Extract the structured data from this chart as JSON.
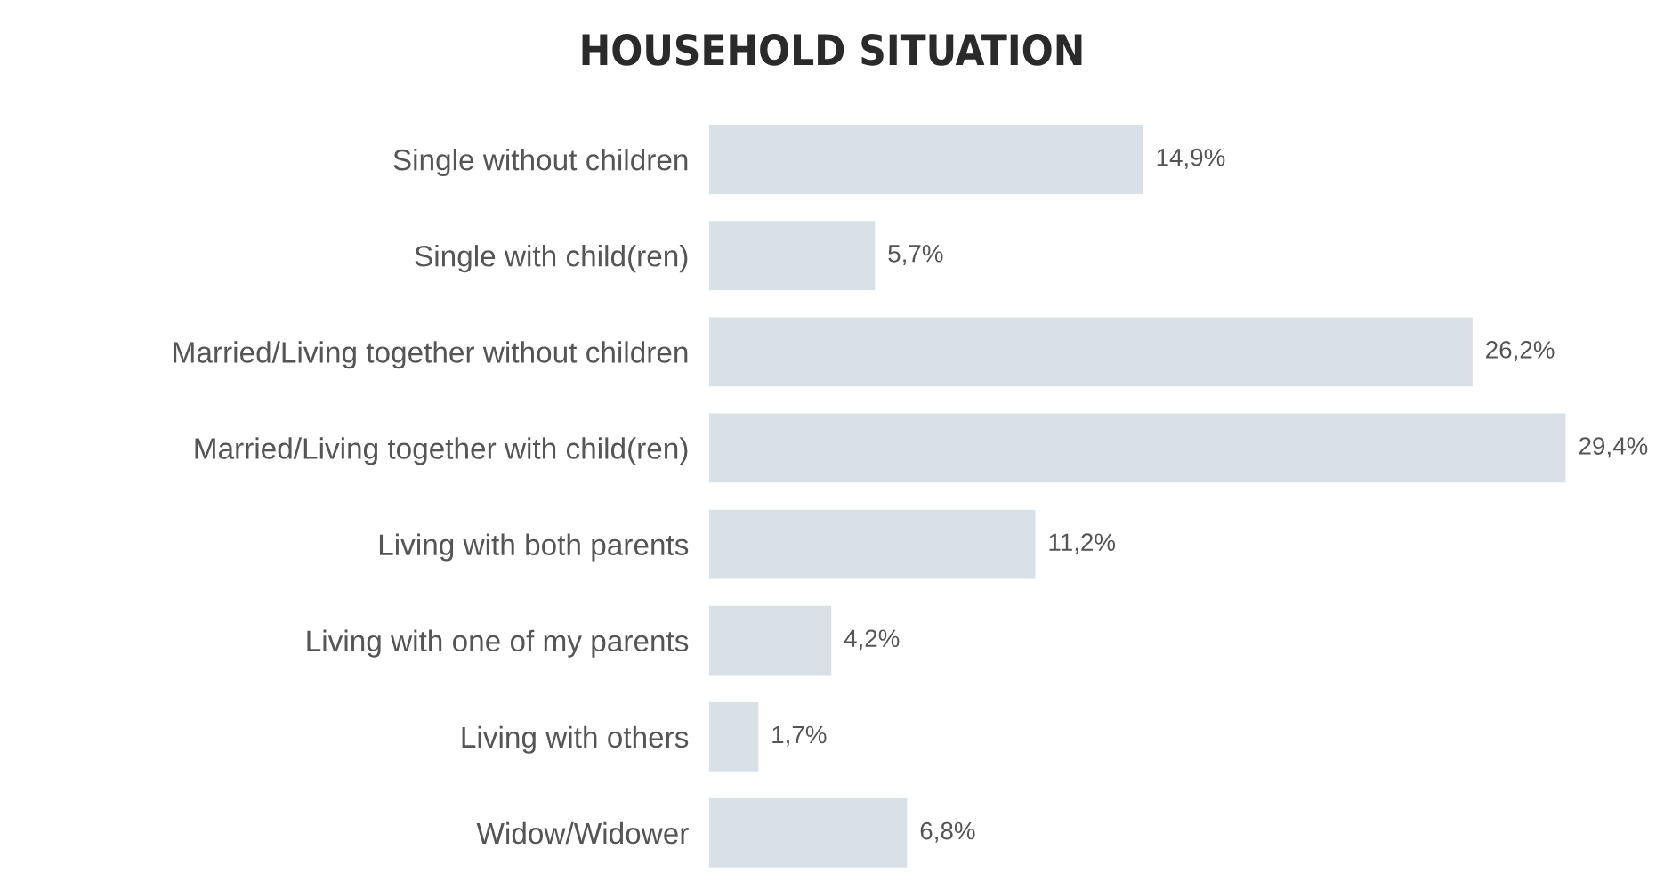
{
  "chart_data": {
    "type": "bar",
    "orientation": "horizontal",
    "title": "HOUSEHOLD SITUATION",
    "categories": [
      "Single without children",
      "Single with child(ren)",
      "Married/Living together without children",
      "Married/Living together with child(ren)",
      "Living with both parents",
      "Living with one of my parents",
      "Living with others",
      "Widow/Widower"
    ],
    "values": [
      14.9,
      5.7,
      26.2,
      29.4,
      11.2,
      4.2,
      1.7,
      6.8
    ],
    "value_labels": [
      "14,9%",
      "5,7%",
      "26,2%",
      "29,4%",
      "11,2%",
      "4,2%",
      "1,7%",
      "6,8%"
    ],
    "color": "#d9e1e7",
    "grid": false,
    "legend": false
  }
}
